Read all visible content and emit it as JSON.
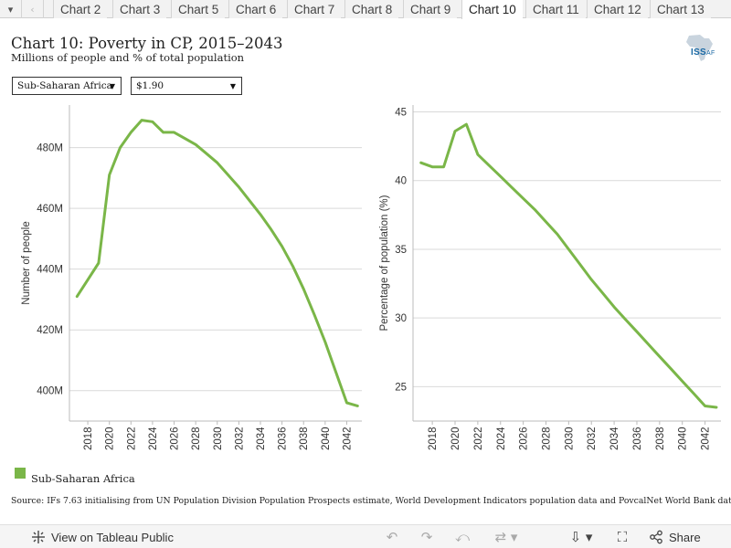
{
  "tabs": {
    "items": [
      "Chart 2",
      "Chart 3",
      "Chart 5",
      "Chart 6",
      "Chart 7",
      "Chart 8",
      "Chart 9",
      "Chart 10",
      "Chart 11",
      "Chart 12",
      "Chart 13"
    ],
    "active": "Chart 10"
  },
  "header": {
    "title": "Chart 10: Poverty in CP, 2015–2043",
    "subtitle": "Millions of people and % of total population",
    "logo_text": "ISS",
    "logo_suffix": "AF"
  },
  "filters": {
    "region": "Sub-Saharan Africa",
    "threshold": "$1.90"
  },
  "chart_data": [
    {
      "type": "line",
      "title": "",
      "xlabel": "",
      "ylabel": "Number of people",
      "xlim": [
        2016.3,
        2043.4
      ],
      "ylim": [
        390,
        494
      ],
      "x_ticks": [
        2018,
        2020,
        2022,
        2024,
        2026,
        2028,
        2030,
        2032,
        2034,
        2036,
        2038,
        2040,
        2042
      ],
      "y_ticks": [
        {
          "value": 400,
          "label": "400M"
        },
        {
          "value": 420,
          "label": "420M"
        },
        {
          "value": 440,
          "label": "440M"
        },
        {
          "value": 460,
          "label": "460M"
        },
        {
          "value": 480,
          "label": "480M"
        }
      ],
      "grid": true,
      "color": "#7ab648",
      "series": [
        {
          "name": "Sub-Saharan Africa",
          "x": [
            2017,
            2018,
            2019,
            2020,
            2021,
            2022,
            2023,
            2024,
            2025,
            2026,
            2027,
            2028,
            2029,
            2030,
            2031,
            2032,
            2033,
            2034,
            2035,
            2036,
            2037,
            2038,
            2039,
            2040,
            2041,
            2042,
            2043
          ],
          "y": [
            431,
            436.5,
            442,
            471,
            480,
            485,
            489,
            488.5,
            485,
            485,
            483,
            481,
            478,
            475,
            471,
            467,
            462.5,
            458,
            453,
            447.5,
            441,
            433.5,
            425,
            416,
            406,
            396,
            395
          ]
        }
      ]
    },
    {
      "type": "line",
      "title": "",
      "xlabel": "",
      "ylabel": "Percentage of population (%)",
      "xlim": [
        2016.3,
        2043.4
      ],
      "ylim": [
        22.5,
        45.5
      ],
      "x_ticks": [
        2018,
        2020,
        2022,
        2024,
        2026,
        2028,
        2030,
        2032,
        2034,
        2036,
        2038,
        2040,
        2042
      ],
      "y_ticks": [
        {
          "value": 25,
          "label": "25"
        },
        {
          "value": 30,
          "label": "30"
        },
        {
          "value": 35,
          "label": "35"
        },
        {
          "value": 40,
          "label": "40"
        },
        {
          "value": 45,
          "label": "45"
        }
      ],
      "grid": true,
      "color": "#7ab648",
      "series": [
        {
          "name": "Sub-Saharan Africa",
          "x": [
            2017,
            2018,
            2019,
            2020,
            2021,
            2022,
            2023,
            2024,
            2025,
            2026,
            2027,
            2028,
            2029,
            2030,
            2031,
            2032,
            2033,
            2034,
            2035,
            2036,
            2037,
            2038,
            2039,
            2040,
            2041,
            2042,
            2043
          ],
          "y": [
            41.3,
            41.0,
            41.0,
            43.6,
            44.1,
            41.9,
            41.1,
            40.3,
            39.5,
            38.7,
            37.9,
            37.0,
            36.1,
            35.0,
            33.9,
            32.8,
            31.8,
            30.8,
            29.9,
            29.0,
            28.1,
            27.2,
            26.3,
            25.4,
            24.5,
            23.6,
            23.5
          ]
        }
      ]
    }
  ],
  "legend": {
    "label": "Sub-Saharan Africa",
    "color": "#7ab648"
  },
  "source_text": "Source: IFs 7.63 initialising from UN Population Division Population Prospects estimate, World Development Indicators population data and PovcalNet World Bank data",
  "toolbar": {
    "view_label": "View on Tableau Public",
    "share_label": "Share",
    "icons": [
      "tableau-logo-icon",
      "undo-icon",
      "redo-icon",
      "revert-icon",
      "refresh-icon",
      "download-icon",
      "fullscreen-icon",
      "share-icon"
    ]
  }
}
